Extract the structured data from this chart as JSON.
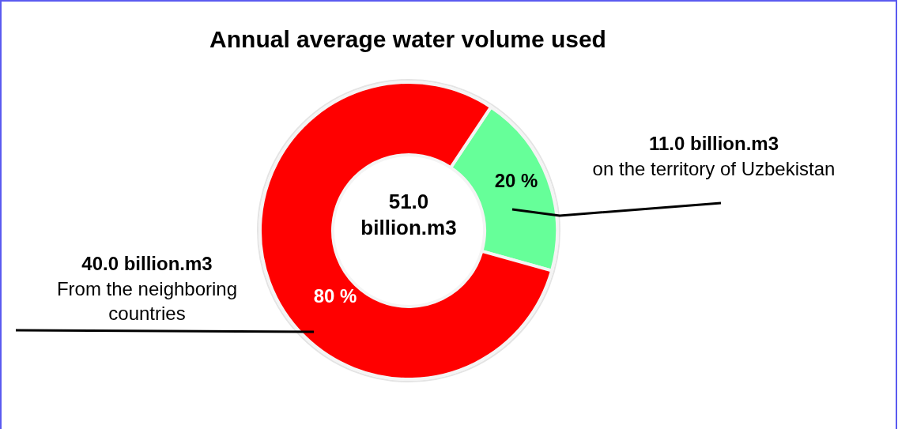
{
  "chart_data": {
    "type": "donut",
    "title": "Annual average water volume used",
    "categories": [
      "on the territory of Uzbekistan",
      "From the neighboring countries"
    ],
    "values": [
      20,
      80
    ],
    "colors": [
      "#66ff99",
      "#ff0000"
    ],
    "value_labels": [
      "20 %",
      "80 %"
    ],
    "annotations": [
      "11.0 billion.m3",
      "40.0 billion.m3",
      "51.0 billion.m3"
    ]
  }
}
